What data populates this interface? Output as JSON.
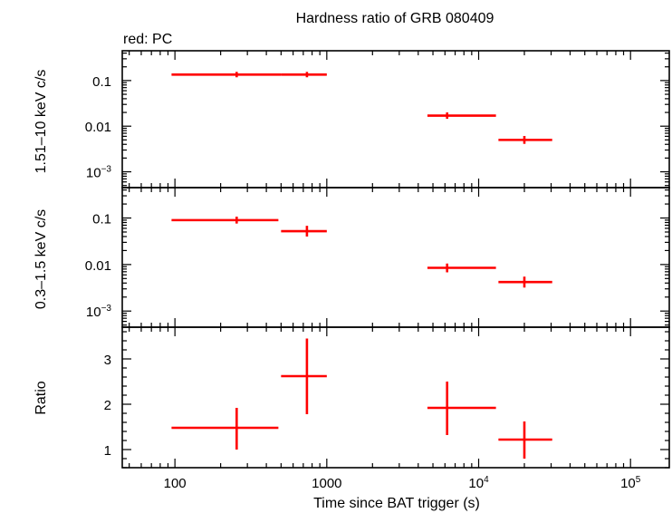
{
  "chart_data": {
    "type": "scatter",
    "title": "Hardness ratio of GRB 080409",
    "legend": "red: PC",
    "series_color": "#ff0000",
    "x_axis": {
      "label": "Time since BAT trigger (s)",
      "scale": "log",
      "range": [
        45,
        180000
      ],
      "ticks": [
        {
          "value": 100,
          "base": "100",
          "exp": ""
        },
        {
          "value": 1000,
          "base": "1000",
          "exp": ""
        },
        {
          "value": 10000,
          "base": "10",
          "exp": "4"
        },
        {
          "value": 100000,
          "base": "10",
          "exp": "5"
        }
      ]
    },
    "panels": [
      {
        "ylabel": "1.51–10 keV c/s",
        "scale": "log",
        "ylim": [
          0.00045,
          0.45
        ],
        "ticks": [
          {
            "value": 0.1,
            "base": "0.1",
            "exp": ""
          },
          {
            "value": 0.01,
            "base": "0.01",
            "exp": ""
          },
          {
            "value": 0.001,
            "base": "10",
            "exp": "−3"
          }
        ],
        "points": [
          {
            "x": 255,
            "xlo": 95,
            "xhi": 500,
            "y": 0.135,
            "ylo": 0.118,
            "yhi": 0.155
          },
          {
            "x": 740,
            "xlo": 500,
            "xhi": 1000,
            "y": 0.135,
            "ylo": 0.118,
            "yhi": 0.155
          },
          {
            "x": 6200,
            "xlo": 4600,
            "xhi": 13000,
            "y": 0.017,
            "ylo": 0.0145,
            "yhi": 0.02
          },
          {
            "x": 20000,
            "xlo": 13500,
            "xhi": 30500,
            "y": 0.005,
            "ylo": 0.0041,
            "yhi": 0.0061
          }
        ]
      },
      {
        "ylabel": "0.3–1.5 keV c/s",
        "scale": "log",
        "ylim": [
          0.00045,
          0.45
        ],
        "ticks": [
          {
            "value": 0.1,
            "base": "0.1",
            "exp": ""
          },
          {
            "value": 0.01,
            "base": "0.01",
            "exp": ""
          },
          {
            "value": 0.001,
            "base": "10",
            "exp": "−3"
          }
        ],
        "points": [
          {
            "x": 255,
            "xlo": 95,
            "xhi": 480,
            "y": 0.09,
            "ylo": 0.076,
            "yhi": 0.107
          },
          {
            "x": 740,
            "xlo": 500,
            "xhi": 1000,
            "y": 0.052,
            "ylo": 0.04,
            "yhi": 0.068
          },
          {
            "x": 6200,
            "xlo": 4600,
            "xhi": 13000,
            "y": 0.0085,
            "ylo": 0.0068,
            "yhi": 0.0105
          },
          {
            "x": 20000,
            "xlo": 13500,
            "xhi": 30500,
            "y": 0.0042,
            "ylo": 0.0032,
            "yhi": 0.0055
          }
        ]
      },
      {
        "ylabel": "Ratio",
        "scale": "linear",
        "ylim": [
          0.6,
          3.7
        ],
        "ticks": [
          {
            "value": 1,
            "base": "1",
            "exp": ""
          },
          {
            "value": 2,
            "base": "2",
            "exp": ""
          },
          {
            "value": 3,
            "base": "3",
            "exp": ""
          }
        ],
        "points": [
          {
            "x": 255,
            "xlo": 95,
            "xhi": 480,
            "y": 1.48,
            "ylo": 1.0,
            "yhi": 1.92
          },
          {
            "x": 740,
            "xlo": 500,
            "xhi": 1000,
            "y": 2.62,
            "ylo": 1.78,
            "yhi": 3.45
          },
          {
            "x": 6200,
            "xlo": 4600,
            "xhi": 13000,
            "y": 1.92,
            "ylo": 1.32,
            "yhi": 2.5
          },
          {
            "x": 20000,
            "xlo": 13500,
            "xhi": 30500,
            "y": 1.22,
            "ylo": 0.8,
            "yhi": 1.62
          }
        ]
      }
    ]
  }
}
